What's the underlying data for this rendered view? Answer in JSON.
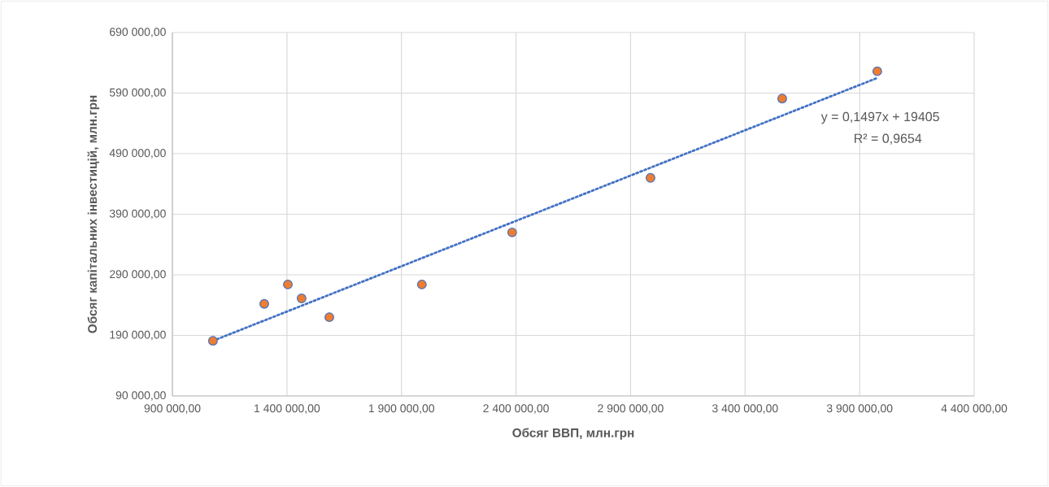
{
  "chart_data": {
    "type": "scatter",
    "xlabel": "Обсяг ВВП, млн.грн",
    "ylabel": "Обсяг капітальних інвестицій, млн.грн",
    "xlim": [
      900000,
      4400000
    ],
    "ylim": [
      90000,
      690000
    ],
    "xticks": [
      {
        "value": 900000,
        "label": "900 000,00"
      },
      {
        "value": 1400000,
        "label": "1 400 000,00"
      },
      {
        "value": 1900000,
        "label": "1 900 000,00"
      },
      {
        "value": 2400000,
        "label": "2 400 000,00"
      },
      {
        "value": 2900000,
        "label": "2 900 000,00"
      },
      {
        "value": 3400000,
        "label": "3 400 000,00"
      },
      {
        "value": 3900000,
        "label": "3 900 000,00"
      },
      {
        "value": 4400000,
        "label": "4 400 000,00"
      }
    ],
    "yticks": [
      {
        "value": 90000,
        "label": "90 000,00"
      },
      {
        "value": 190000,
        "label": "190 000,00"
      },
      {
        "value": 290000,
        "label": "290 000,00"
      },
      {
        "value": 390000,
        "label": "390 000,00"
      },
      {
        "value": 490000,
        "label": "490 000,00"
      },
      {
        "value": 590000,
        "label": "590 000,00"
      },
      {
        "value": 690000,
        "label": "690 000,00"
      }
    ],
    "grid": true,
    "series": [
      {
        "marker": "circle",
        "color": "#ed7d31",
        "x": [
          1077000,
          1301000,
          1404000,
          1464000,
          1585000,
          1989000,
          2383000,
          2987000,
          3562000,
          3977000
        ],
        "values": [
          181000,
          242000,
          274000,
          251000,
          220000,
          274000,
          360000,
          450000,
          581000,
          626000
        ]
      },
      {
        "type": "line",
        "marker": "none",
        "color": "#4472c4",
        "line_style": "dotted",
        "x": [
          1077000,
          3977000
        ],
        "values": [
          181000,
          615000
        ]
      }
    ],
    "annotations": [
      "y = 0,1497x + 19405",
      "R² = 0,9654"
    ]
  }
}
